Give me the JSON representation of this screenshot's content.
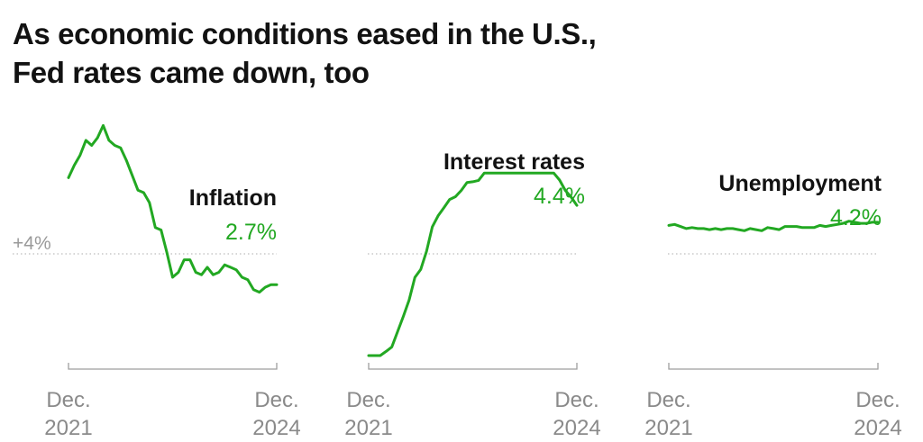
{
  "title_lines": [
    "As economic conditions eased in the U.S.,",
    "Fed rates came down, too"
  ],
  "reference_label": "+4%",
  "colors": {
    "series": "#22a822",
    "text": "#121212",
    "axis": "#9e9e9e"
  },
  "chart_data": [
    {
      "type": "line",
      "title": "Inflation",
      "end_value_label": "2.7%",
      "x_tick_labels": [
        [
          "Dec.",
          "2021"
        ],
        [
          "Dec.",
          "2024"
        ]
      ],
      "x": [
        "2021-12",
        "2022-01",
        "2022-02",
        "2022-03",
        "2022-04",
        "2022-05",
        "2022-06",
        "2022-07",
        "2022-08",
        "2022-09",
        "2022-10",
        "2022-11",
        "2022-12",
        "2023-01",
        "2023-02",
        "2023-03",
        "2023-04",
        "2023-05",
        "2023-06",
        "2023-07",
        "2023-08",
        "2023-09",
        "2023-10",
        "2023-11",
        "2023-12",
        "2024-01",
        "2024-02",
        "2024-03",
        "2024-04",
        "2024-05",
        "2024-06",
        "2024-07",
        "2024-08",
        "2024-09",
        "2024-10",
        "2024-11",
        "2024-12"
      ],
      "values": [
        7.0,
        7.5,
        7.9,
        8.5,
        8.3,
        8.6,
        9.1,
        8.5,
        8.3,
        8.2,
        7.7,
        7.1,
        6.5,
        6.4,
        6.0,
        5.0,
        4.9,
        4.0,
        3.0,
        3.2,
        3.7,
        3.7,
        3.2,
        3.1,
        3.4,
        3.1,
        3.2,
        3.5,
        3.4,
        3.3,
        3.0,
        2.9,
        2.5,
        2.4,
        2.6,
        2.7,
        2.7
      ],
      "reference_y": 4.0,
      "ylim": [
        -0.4,
        9.8
      ]
    },
    {
      "type": "line",
      "title": "Interest rates",
      "end_value_label": "4.4%",
      "x_tick_labels": [
        [
          "Dec.",
          "2021"
        ],
        [
          "Dec.",
          "2024"
        ]
      ],
      "x": [
        "2021-12",
        "2022-01",
        "2022-02",
        "2022-03",
        "2022-04",
        "2022-05",
        "2022-06",
        "2022-07",
        "2022-08",
        "2022-09",
        "2022-10",
        "2022-11",
        "2022-12",
        "2023-01",
        "2023-02",
        "2023-03",
        "2023-04",
        "2023-05",
        "2023-06",
        "2023-07",
        "2023-08",
        "2023-09",
        "2023-10",
        "2023-11",
        "2023-12",
        "2024-01",
        "2024-02",
        "2024-03",
        "2024-04",
        "2024-05",
        "2024-06",
        "2024-07",
        "2024-08",
        "2024-09",
        "2024-10",
        "2024-11",
        "2024-12"
      ],
      "values": [
        0.08,
        0.08,
        0.08,
        0.2,
        0.33,
        0.77,
        1.21,
        1.68,
        2.33,
        2.56,
        3.08,
        3.78,
        4.1,
        4.33,
        4.57,
        4.65,
        4.83,
        5.06,
        5.08,
        5.12,
        5.33,
        5.33,
        5.33,
        5.33,
        5.33,
        5.33,
        5.33,
        5.33,
        5.33,
        5.33,
        5.33,
        5.33,
        5.33,
        5.13,
        4.83,
        4.64,
        4.4
      ],
      "reference_y": 4.0,
      "ylim": [
        -0.1,
        7.2
      ]
    },
    {
      "type": "line",
      "title": "Unemployment",
      "end_value_label": "4.2%",
      "x_tick_labels": [
        [
          "Dec.",
          "2021"
        ],
        [
          "Dec.",
          "2024"
        ]
      ],
      "x": [
        "2021-12",
        "2022-01",
        "2022-02",
        "2022-03",
        "2022-04",
        "2022-05",
        "2022-06",
        "2022-07",
        "2022-08",
        "2022-09",
        "2022-10",
        "2022-11",
        "2022-12",
        "2023-01",
        "2023-02",
        "2023-03",
        "2023-04",
        "2023-05",
        "2023-06",
        "2023-07",
        "2023-08",
        "2023-09",
        "2023-10",
        "2023-11",
        "2023-12",
        "2024-01",
        "2024-02",
        "2024-03",
        "2024-04",
        "2024-05",
        "2024-06",
        "2024-07",
        "2024-08",
        "2024-09",
        "2024-10",
        "2024-11",
        "2024-12"
      ],
      "values": [
        3.9,
        4.0,
        3.8,
        3.6,
        3.7,
        3.6,
        3.6,
        3.5,
        3.6,
        3.5,
        3.6,
        3.6,
        3.5,
        3.4,
        3.6,
        3.5,
        3.4,
        3.7,
        3.6,
        3.5,
        3.8,
        3.8,
        3.8,
        3.7,
        3.7,
        3.7,
        3.9,
        3.8,
        3.9,
        4.0,
        4.1,
        4.3,
        4.2,
        4.1,
        4.1,
        4.2,
        4.2
      ],
      "reference_y": 4.0,
      "ylim": [
        -9.0,
        15.0
      ]
    }
  ]
}
